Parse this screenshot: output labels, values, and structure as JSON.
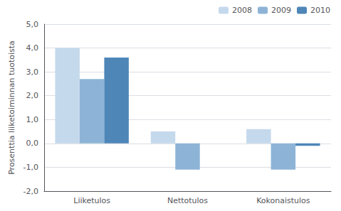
{
  "chart_data": {
    "type": "bar",
    "categories": [
      "Liiketulos",
      "Nettotulos",
      "Kokonaistulos"
    ],
    "series": [
      {
        "name": "2008",
        "color": "#c5d9ed",
        "values": [
          4.0,
          0.5,
          0.6
        ]
      },
      {
        "name": "2009",
        "color": "#8db4d6",
        "values": [
          2.7,
          -1.1,
          -1.1
        ]
      },
      {
        "name": "2010",
        "color": "#4e86b8",
        "values": [
          3.6,
          0.0,
          -0.1
        ]
      }
    ],
    "ylabel": "Prosenttia liiketoiminnan tuotoista",
    "ylim": [
      -2.0,
      5.0
    ],
    "yticks": [
      {
        "value": -2.0,
        "label": "-2,0"
      },
      {
        "value": -1.0,
        "label": "-1,0"
      },
      {
        "value": 0.0,
        "label": "0,0"
      },
      {
        "value": 1.0,
        "label": "1,0"
      },
      {
        "value": 2.0,
        "label": "2,0"
      },
      {
        "value": 3.0,
        "label": "3,0"
      },
      {
        "value": 4.0,
        "label": "4,0"
      },
      {
        "value": 5.0,
        "label": "5,0"
      }
    ],
    "grid": true,
    "legend": "upper right"
  }
}
